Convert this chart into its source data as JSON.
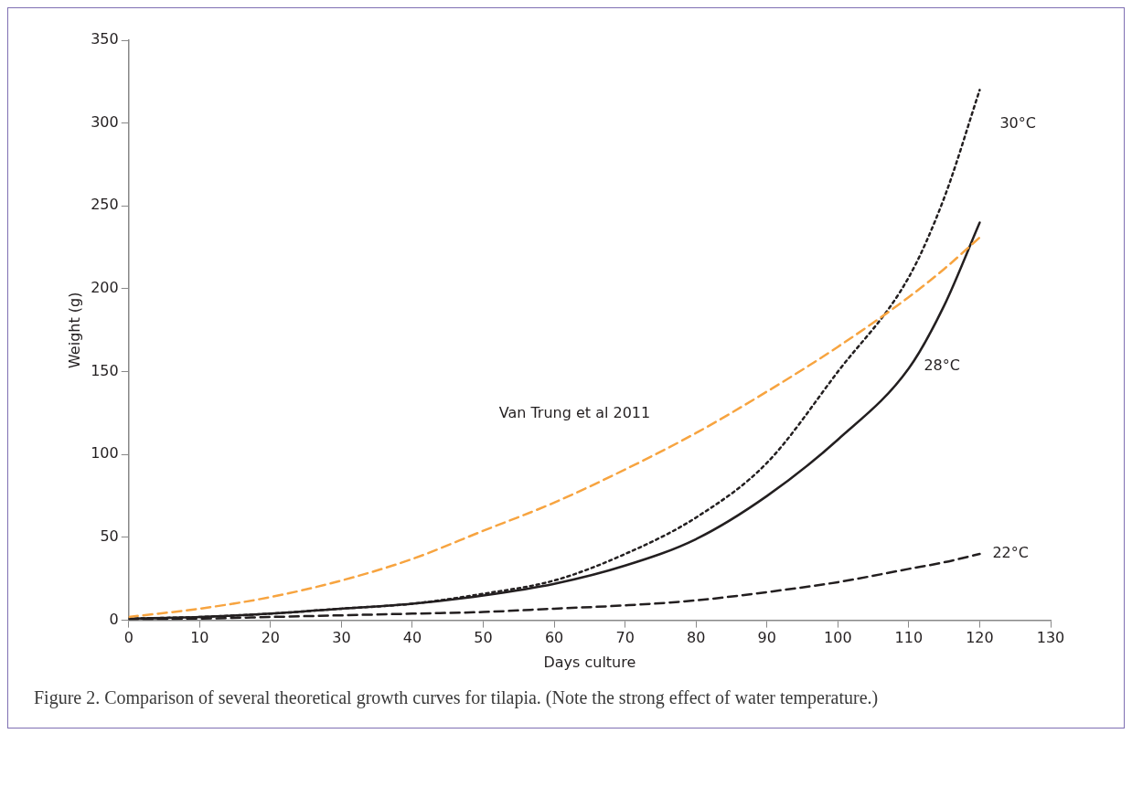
{
  "chart_data": {
    "type": "line",
    "xlabel": "Days culture",
    "ylabel": "Weight (g)",
    "x": [
      0,
      10,
      20,
      30,
      40,
      50,
      60,
      70,
      80,
      90,
      100,
      110,
      115,
      120
    ],
    "xlim": [
      0,
      130
    ],
    "xticks": [
      0,
      10,
      20,
      30,
      40,
      50,
      60,
      70,
      80,
      90,
      100,
      110,
      120,
      130
    ],
    "ylim": [
      0,
      350
    ],
    "yticks": [
      0,
      50,
      100,
      150,
      200,
      250,
      300,
      350
    ],
    "grid": false,
    "legend": false,
    "marker": "none",
    "series": [
      {
        "name": "Van Trung et al 2011",
        "color": "#f7a440",
        "line_style": "dashed",
        "values": [
          2,
          7,
          14,
          24,
          37,
          54,
          71,
          91,
          113,
          138,
          165,
          195,
          212,
          231
        ]
      },
      {
        "name": "30°C",
        "color": "#231f20",
        "line_style": "dotted",
        "values": [
          1,
          2,
          4,
          7,
          10,
          16,
          24,
          40,
          62,
          95,
          150,
          207,
          255,
          320
        ]
      },
      {
        "name": "28°C",
        "color": "#231f20",
        "line_style": "solid",
        "values": [
          1,
          2,
          4,
          7,
          10,
          15,
          22,
          33,
          49,
          75,
          109,
          152,
          190,
          240
        ]
      },
      {
        "name": "22°C",
        "color": "#231f20",
        "line_style": "dashed",
        "values": [
          0.5,
          1,
          2,
          3,
          4,
          5,
          7,
          9,
          12,
          17,
          23,
          31,
          35,
          40
        ]
      }
    ],
    "annotations": [
      "Figure 2.  Comparison of several theoretical growth curves for tilapia. (Note the strong effect of water temperature.)"
    ]
  }
}
